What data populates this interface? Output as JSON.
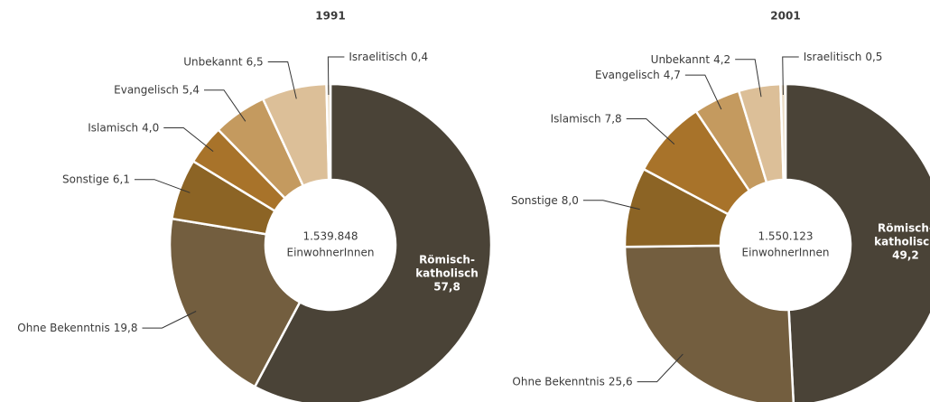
{
  "chart_data": [
    {
      "type": "pie",
      "title": "1991",
      "categories": [
        "Römisch-katholisch",
        "Ohne Bekenntnis",
        "Sonstige",
        "Islamisch",
        "Evangelisch",
        "Unbekannt",
        "Israelitisch"
      ],
      "values": [
        57.8,
        19.8,
        6.1,
        4.0,
        5.4,
        6.5,
        0.4
      ],
      "value_labels": [
        "57,8",
        "19,8",
        "6,1",
        "4,0",
        "5,4",
        "6,5",
        "0,4"
      ],
      "colors": [
        "#4a4337",
        "#735e3f",
        "#8c6425",
        "#a8732a",
        "#c49a5f",
        "#dcbf98",
        "#eadcc6"
      ],
      "center_value": "1.539.848",
      "center_unit": "EinwohnerInnen"
    },
    {
      "type": "pie",
      "title": "2001",
      "categories": [
        "Römisch-katholisch",
        "Ohne Bekenntnis",
        "Sonstige",
        "Islamisch",
        "Evangelisch",
        "Unbekannt",
        "Israelitisch"
      ],
      "values": [
        49.2,
        25.6,
        8.0,
        7.8,
        4.7,
        4.2,
        0.5
      ],
      "value_labels": [
        "49,2",
        "25,6",
        "8,0",
        "7,8",
        "4,7",
        "4,2",
        "0,5"
      ],
      "colors": [
        "#4a4337",
        "#735e3f",
        "#8c6425",
        "#a8732a",
        "#c49a5f",
        "#dcbf98",
        "#eadcc6"
      ],
      "center_value": "1.550.123",
      "center_unit": "EinwohnerInnen"
    }
  ]
}
